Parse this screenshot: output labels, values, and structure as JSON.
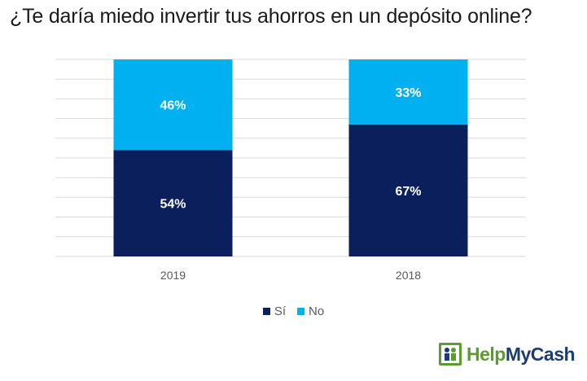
{
  "chart_data": {
    "type": "bar",
    "stacked": true,
    "title": "¿Te daría miedo invertir tus ahorros en un depósito online?",
    "categories": [
      "2019",
      "2018"
    ],
    "series": [
      {
        "name": "Sí",
        "values": [
          54,
          67
        ],
        "labels": [
          "54%",
          "67%"
        ],
        "color": "#0b1f5c",
        "label_color": "#ffffff"
      },
      {
        "name": "No",
        "values": [
          46,
          33
        ],
        "labels": [
          "46%",
          "33%"
        ],
        "color": "#00b0f0",
        "label_color": "#ffffff"
      }
    ],
    "ylim": [
      0,
      100
    ],
    "grid": true,
    "legend_position": "bottom"
  },
  "brand": {
    "help": "Help",
    "my_cash": "MyCash",
    "accent": "#5a9c2e",
    "primary": "#1d3c70"
  }
}
